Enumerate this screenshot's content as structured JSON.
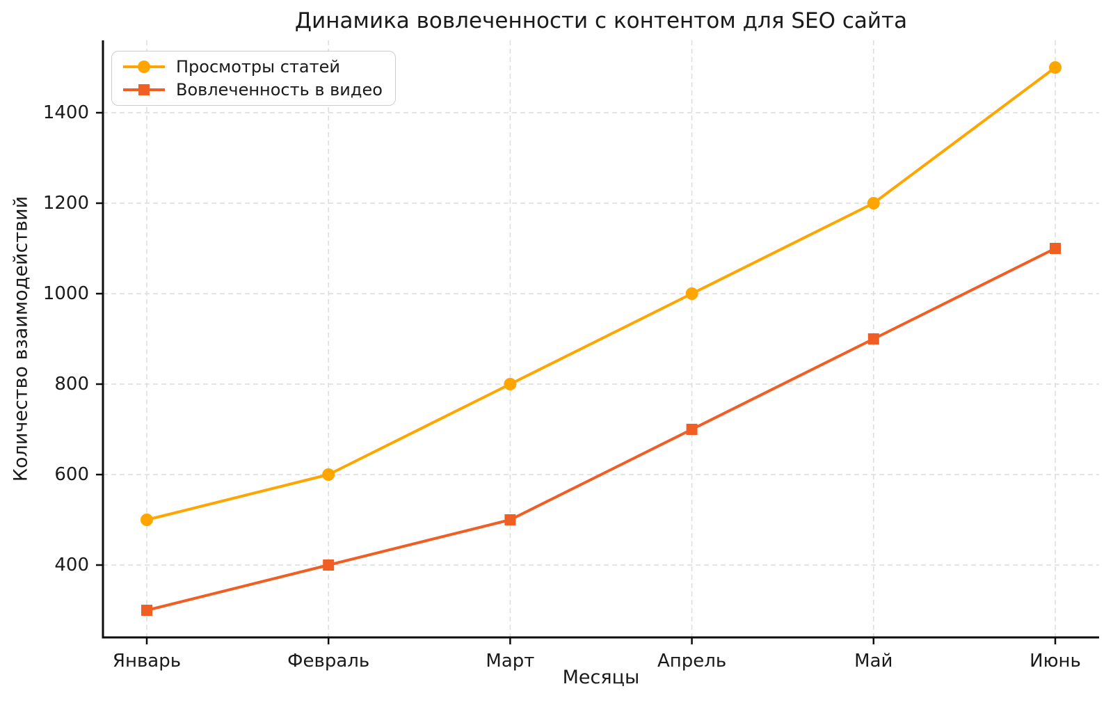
{
  "chart_data": {
    "type": "line",
    "title": "Динамика вовлеченности с контентом для SEO сайта",
    "xlabel": "Месяцы",
    "ylabel": "Количество взаимодействий",
    "categories": [
      "Январь",
      "Февраль",
      "Март",
      "Апрель",
      "Май",
      "Июнь"
    ],
    "series": [
      {
        "name": "Просмотры статей",
        "values": [
          500,
          600,
          800,
          1000,
          1200,
          1500
        ],
        "color": "#FFA500",
        "marker": "circle"
      },
      {
        "name": "Вовлеченность в видео",
        "values": [
          300,
          400,
          500,
          700,
          900,
          1100
        ],
        "color": "#F05E23",
        "marker": "square"
      }
    ],
    "yticks": [
      400,
      600,
      800,
      1000,
      1200,
      1400
    ],
    "ylim": [
      240,
      1560
    ],
    "grid": true,
    "grid_color": "#DCDCDC",
    "axis_color": "#0d0d0d",
    "text_color": "#1a1a1a",
    "legend_position": "upper left"
  }
}
